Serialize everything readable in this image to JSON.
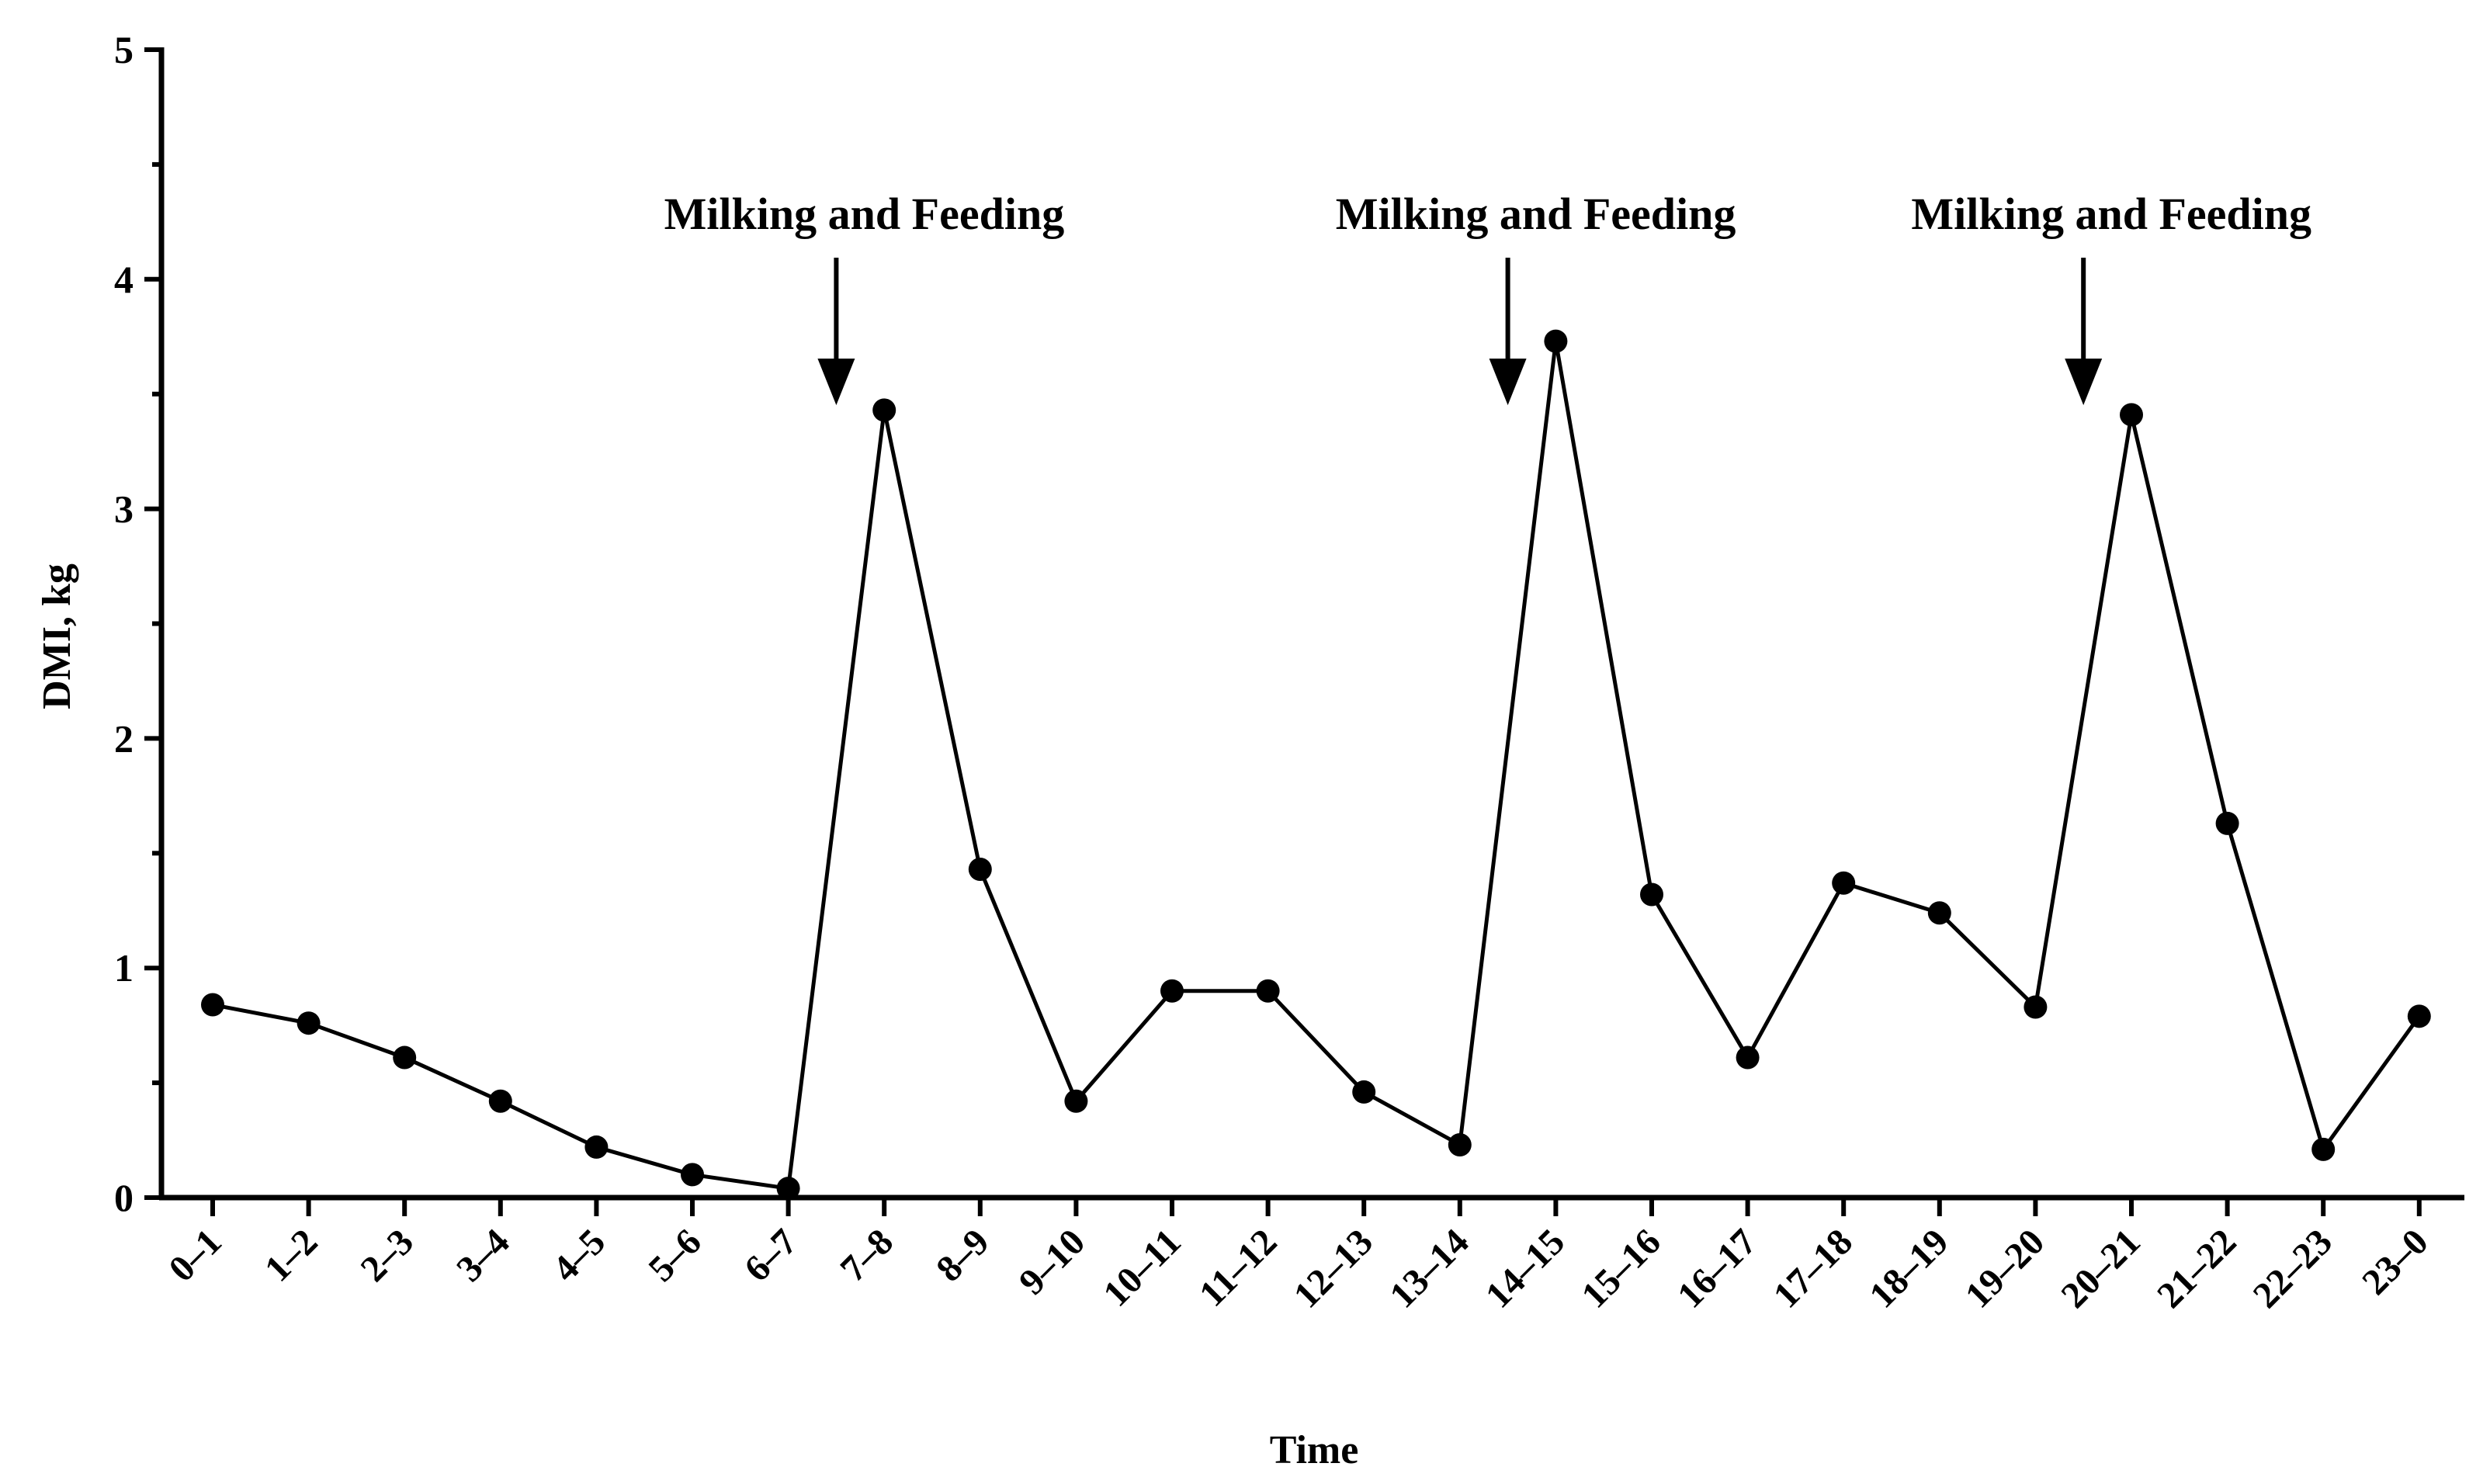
{
  "chart_data": {
    "type": "line",
    "title": "",
    "xlabel": "Time",
    "ylabel": "DMI, kg",
    "ylim": [
      0,
      5
    ],
    "yticks": [
      0,
      1,
      2,
      3,
      4,
      5
    ],
    "categories": [
      "0–1",
      "1–2",
      "2–3",
      "3–4",
      "4–5",
      "5–6",
      "6–7",
      "7–8",
      "8–9",
      "9–10",
      "10–11",
      "11–12",
      "12–13",
      "13–14",
      "14–15",
      "15–16",
      "16–17",
      "17–18",
      "18–19",
      "19–20",
      "20–21",
      "21–22",
      "22–23",
      "23–0"
    ],
    "series": [
      {
        "name": "DMI",
        "values": [
          0.84,
          0.76,
          0.61,
          0.42,
          0.22,
          0.1,
          0.04,
          3.43,
          1.43,
          0.42,
          0.9,
          0.9,
          0.46,
          0.23,
          3.73,
          1.32,
          0.61,
          1.37,
          1.24,
          0.83,
          3.41,
          1.63,
          0.21,
          0.79
        ]
      }
    ],
    "annotations": [
      {
        "text": "Milking and Feeding",
        "x_between": [
          "6–7",
          "7–8"
        ]
      },
      {
        "text": "Milking and Feeding",
        "x_between": [
          "13–14",
          "14–15"
        ]
      },
      {
        "text": "Milking and Feeding",
        "x_between": [
          "19–20",
          "20–21"
        ]
      }
    ]
  }
}
